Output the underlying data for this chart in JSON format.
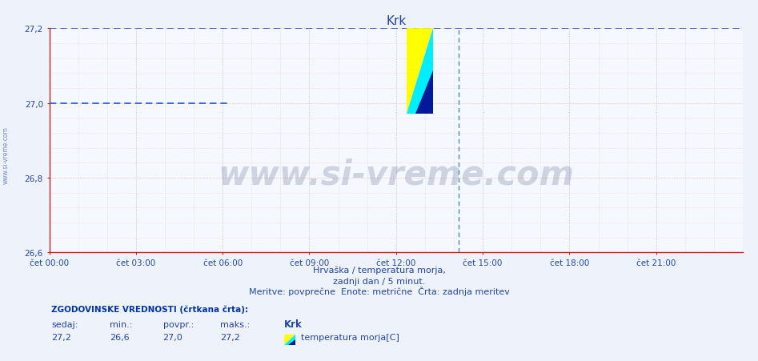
{
  "title": "Krk",
  "bg_color": "#eef3fb",
  "plot_bg_color": "#f5f8fe",
  "fig_bg_color": "#eef3fb",
  "ylim": [
    26.6,
    27.2
  ],
  "xlim": [
    0,
    288
  ],
  "yticks": [
    26.6,
    26.8,
    27.0,
    27.2
  ],
  "ytick_labels": [
    "26,6",
    "26,8",
    "27,0",
    "27,2"
  ],
  "xtick_labels": [
    "čet 00:00",
    "čet 03:00",
    "čet 06:00",
    "čet 09:00",
    "čet 12:00",
    "čet 15:00",
    "čet 18:00",
    "čet 21:00"
  ],
  "xtick_positions": [
    0,
    36,
    72,
    108,
    144,
    180,
    216,
    252
  ],
  "hist_line_value": 27.0,
  "hist_line_end_x": 75,
  "current_value": 27.2,
  "vertical_line_x": 170,
  "red_grid_color": "#f0aaaa",
  "red_grid_dotted_color": "#f5cccc",
  "blue_grid_color": "#aabbd8",
  "blue_grid_dotted_color": "#c8d8ee",
  "hist_line_color": "#2255cc",
  "current_line_color": "#2255cc",
  "vline_color": "#4488bb",
  "title_color": "#2244aa",
  "axis_color": "#cc2222",
  "text_color": "#2244aa",
  "watermark_color": "#1a3060",
  "subtitle_line1": "Hrvaška / temperatura morja,",
  "subtitle_line2": "zadnji dan / 5 minut.",
  "subtitle_line3": "Meritve: povprečne  Enote: metrične  Črta: zadnja meritev",
  "stats_header": "ZGODOVINSKE VREDNOSTI (črtkana črta):",
  "stats_col_headers": [
    "sedaj:",
    "min.:",
    "povpr.:",
    "maks.:"
  ],
  "stats_values": [
    "27,2",
    "26,6",
    "27,0",
    "27,2"
  ],
  "legend_station": "Krk",
  "legend_label": "temperatura morja[C]",
  "sidebar_text": "www.si-vreme.com",
  "figsize": [
    9.47,
    4.52
  ],
  "dpi": 100
}
